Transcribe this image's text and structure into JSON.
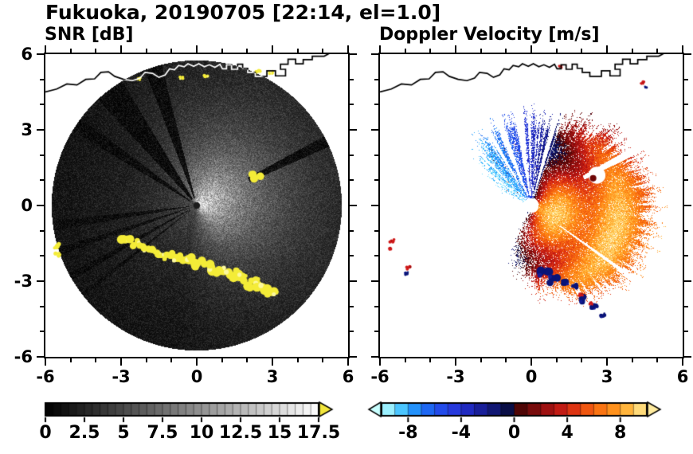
{
  "header": {
    "title": "Fukuoka, 20190705 [22:14, el=1.0]"
  },
  "panels": [
    {
      "title": "SNR [dB]"
    },
    {
      "title": "Doppler Velocity [m/s]"
    }
  ],
  "axis": {
    "range": [
      -6,
      6
    ],
    "tick_values": [
      -6,
      -3,
      0,
      3,
      6
    ],
    "tick_labels": [
      "-6",
      "-3",
      "0",
      "3",
      "6"
    ],
    "minor_step": 1
  },
  "colorbars": [
    {
      "id": "snr",
      "min": 0,
      "max": 17.5,
      "segments": 35,
      "values": [
        0,
        2.5,
        5,
        7.5,
        10,
        12.5,
        15,
        17.5
      ],
      "labels": [
        "0",
        "2.5",
        "5",
        "7.5",
        "10",
        "12.5",
        "15",
        "17.5"
      ],
      "over_arrow_color": "#f2e63c"
    },
    {
      "id": "vel",
      "min": -10,
      "max": 10,
      "segments": 20,
      "values": [
        -8,
        -4,
        0,
        4,
        8
      ],
      "labels": [
        "-8",
        "-4",
        "0",
        "4",
        "8"
      ]
    }
  ],
  "chart_data": {
    "type": "heatmap",
    "title": "Fukuoka, 20190705 [22:14, el=1.0]",
    "station": "Fukuoka",
    "date": "20190705",
    "time": "22:14",
    "elevation_deg": 1.0,
    "x_range_km": [
      -6,
      6
    ],
    "y_range_km": [
      -6,
      6
    ],
    "x_ticks": [
      -6,
      -3,
      0,
      3,
      6
    ],
    "y_ticks": [
      -6,
      -3,
      0,
      3,
      6
    ],
    "panels": [
      {
        "title": "SNR [dB]",
        "units": "dB",
        "colorbar_min": 0,
        "colorbar_max": 17.5,
        "colorbar_ticks": [
          0,
          2.5,
          5,
          7.5,
          10,
          12.5,
          15,
          17.5
        ],
        "colormap": "black-to-white grayscale, yellow above 17.5",
        "description": "PPI radar scan disk of radius ~5.75 km; SNR decays with range, brighter to the E/NE, dark beam-blockage wedges toward NW and WSW, yellow ground-clutter arc along the southern coastline, white coastline trace across the top of the disk"
      },
      {
        "title": "Doppler Velocity [m/s]",
        "units": "m/s",
        "colorbar_min": -10,
        "colorbar_max": 10,
        "colorbar_ticks": [
          -8,
          -4,
          0,
          4,
          8
        ],
        "colormap": "cyan-blue-navy for negative, dark red-red-orange-yellow for positive",
        "description": "Blue (negative, toward radar) echoes in a N-NW sector with white blocked-beam gaps; orange/red (positive) echoes over a broad E-through-S sector with radial banding; navy aliasing patches on the southern echo edge; black coastline at top"
      }
    ]
  },
  "render": {
    "radius": 5.75,
    "snr": {
      "amp": 15,
      "falloff": 2.4,
      "floor": 0.8,
      "az_bright_deg": 20,
      "az_width": 0.75,
      "az_floor": 0.28,
      "max": 17.5
    },
    "snr_wedges": [
      [
        104,
        111,
        0.3,
        0.05
      ],
      [
        121,
        133,
        0.3,
        0.04
      ],
      [
        143,
        149,
        0.3,
        0.06
      ],
      [
        24,
        28.5,
        2.3,
        0.06
      ],
      [
        186,
        190,
        0.3,
        0.12
      ],
      [
        197,
        200,
        0.3,
        0.12
      ],
      [
        208,
        211,
        0.3,
        0.12
      ],
      [
        217,
        219,
        0.3,
        0.15
      ]
    ],
    "clutter": [
      [
        -2.78,
        -1.32,
        0.26
      ],
      [
        -2.35,
        -1.5,
        0.2
      ],
      [
        -1.95,
        -1.72,
        0.22
      ],
      [
        -1.55,
        -1.92,
        0.18
      ],
      [
        -1.15,
        -2.0,
        0.2
      ],
      [
        -0.72,
        -2.1,
        0.24
      ],
      [
        -0.3,
        -2.2,
        0.27
      ],
      [
        0.12,
        -2.32,
        0.26
      ],
      [
        0.55,
        -2.45,
        0.28
      ],
      [
        0.98,
        -2.6,
        0.25
      ],
      [
        1.42,
        -2.72,
        0.28
      ],
      [
        1.85,
        -2.88,
        0.24
      ],
      [
        2.25,
        -3.08,
        0.28
      ],
      [
        2.65,
        -3.3,
        0.3
      ],
      [
        3.0,
        -3.45,
        0.23
      ],
      [
        -5.58,
        -1.6,
        0.14
      ],
      [
        -5.52,
        -1.95,
        0.12
      ],
      [
        2.35,
        1.15,
        0.24
      ],
      [
        0.35,
        5.15,
        0.1
      ],
      [
        -0.6,
        5.05,
        0.09
      ],
      [
        2.45,
        5.3,
        0.11
      ],
      [
        2.95,
        5.28,
        0.09
      ],
      [
        -2.3,
        5.02,
        0.08
      ]
    ],
    "coastline": [
      [
        -6,
        4.5
      ],
      [
        -5.55,
        4.62
      ],
      [
        -5.15,
        4.82
      ],
      [
        -4.75,
        4.78
      ],
      [
        -4.4,
        5.0
      ],
      [
        -4.05,
        5.02
      ],
      [
        -3.8,
        5.28
      ],
      [
        -3.5,
        5.3
      ],
      [
        -3.25,
        5.12
      ],
      [
        -2.9,
        5.0
      ],
      [
        -2.55,
        4.95
      ],
      [
        -2.25,
        5.05
      ],
      [
        -2.05,
        5.28
      ],
      [
        -1.75,
        5.24
      ],
      [
        -1.5,
        5.08
      ],
      [
        -1.25,
        5.18
      ],
      [
        -1.08,
        5.42
      ],
      [
        -0.88,
        5.38
      ],
      [
        -0.72,
        5.55
      ],
      [
        -0.5,
        5.5
      ],
      [
        -0.35,
        5.62
      ],
      [
        -0.12,
        5.52
      ],
      [
        0.08,
        5.62
      ],
      [
        0.3,
        5.5
      ],
      [
        0.5,
        5.58
      ],
      [
        0.72,
        5.48
      ],
      [
        0.92,
        5.6
      ],
      [
        1.02,
        5.42
      ],
      [
        1.18,
        5.42
      ],
      [
        1.18,
        5.58
      ],
      [
        1.38,
        5.58
      ],
      [
        1.38,
        5.4
      ],
      [
        1.62,
        5.4
      ],
      [
        1.62,
        5.6
      ],
      [
        1.82,
        5.6
      ],
      [
        1.82,
        5.44
      ],
      [
        2.02,
        5.44
      ],
      [
        2.02,
        5.28
      ],
      [
        2.32,
        5.28
      ],
      [
        2.32,
        5.12
      ],
      [
        2.78,
        5.12
      ],
      [
        2.78,
        5.34
      ],
      [
        3.12,
        5.34
      ],
      [
        3.12,
        5.14
      ],
      [
        3.52,
        5.14
      ],
      [
        3.52,
        5.4
      ],
      [
        3.32,
        5.4
      ],
      [
        3.32,
        5.6
      ],
      [
        3.62,
        5.6
      ],
      [
        3.62,
        5.8
      ],
      [
        3.92,
        5.8
      ],
      [
        3.92,
        5.62
      ],
      [
        4.22,
        5.62
      ],
      [
        4.22,
        5.78
      ],
      [
        4.58,
        5.78
      ],
      [
        4.58,
        5.92
      ],
      [
        5.05,
        5.92
      ],
      [
        5.3,
        6.05
      ]
    ],
    "rmax": [
      [
        -180,
        0
      ],
      [
        -130,
        0
      ],
      [
        -112,
        1.7
      ],
      [
        -98,
        2.7
      ],
      [
        -85,
        3.15
      ],
      [
        -65,
        3.7
      ],
      [
        -45,
        4.35
      ],
      [
        -25,
        4.65
      ],
      [
        -5,
        4.7
      ],
      [
        10,
        4.5
      ],
      [
        25,
        4.3
      ],
      [
        40,
        4.05
      ],
      [
        55,
        3.7
      ],
      [
        70,
        3.45
      ],
      [
        85,
        3.35
      ],
      [
        100,
        3.3
      ],
      [
        115,
        3.2
      ],
      [
        130,
        2.9
      ],
      [
        140,
        2.5
      ],
      [
        150,
        1.5
      ],
      [
        160,
        0.6
      ],
      [
        168,
        0
      ],
      [
        180,
        0
      ]
    ],
    "basep": [
      [
        -180,
        0
      ],
      [
        -122,
        0
      ],
      [
        -108,
        0.45
      ],
      [
        -92,
        0.8
      ],
      [
        -70,
        0.95
      ],
      [
        -30,
        0.97
      ],
      [
        30,
        0.97
      ],
      [
        60,
        0.95
      ],
      [
        78,
        0.88
      ],
      [
        95,
        0.82
      ],
      [
        120,
        0.82
      ],
      [
        138,
        0.7
      ],
      [
        150,
        0.4
      ],
      [
        162,
        0
      ],
      [
        180,
        0
      ]
    ],
    "gaps": [
      [
        96,
        100,
        0.4
      ],
      [
        109,
        113,
        0.5
      ],
      [
        118.5,
        121.5,
        1.0
      ],
      [
        72.5,
        76,
        0.4
      ],
      [
        26,
        30,
        2.35
      ],
      [
        -36.5,
        -34.7,
        1.4
      ],
      [
        133.5,
        135.5,
        1.3
      ]
    ],
    "vel": {
      "amp": 7.8,
      "dir_deg": -20,
      "band_amp": 1.4,
      "band_freq": 2.6,
      "noise": 2.2,
      "blue_bias": -1.2
    },
    "vel_colormap": [
      [
        -10,
        "#c8ffff"
      ],
      [
        -9,
        "#6ee0ff"
      ],
      [
        -8,
        "#28aaff"
      ],
      [
        -7,
        "#1e78f5"
      ],
      [
        -6,
        "#1e55ee"
      ],
      [
        -5,
        "#2841e6"
      ],
      [
        -4,
        "#2330d2"
      ],
      [
        -3,
        "#1c23ad"
      ],
      [
        -2,
        "#151b85"
      ],
      [
        -1,
        "#0d1260"
      ],
      [
        -0.3,
        "#070c3c"
      ],
      [
        0.3,
        "#460505"
      ],
      [
        1,
        "#640808"
      ],
      [
        2,
        "#8c0f0f"
      ],
      [
        3,
        "#b01313"
      ],
      [
        4,
        "#d22214"
      ],
      [
        5,
        "#e84610"
      ],
      [
        6,
        "#f5660f"
      ],
      [
        7,
        "#ff8214"
      ],
      [
        8,
        "#ffa023"
      ],
      [
        9,
        "#ffc855"
      ],
      [
        10,
        "#ffeb9e"
      ]
    ],
    "navy_blobs": [
      [
        0.5,
        -2.72,
        0.26
      ],
      [
        0.92,
        -2.95,
        0.22
      ],
      [
        1.3,
        -3.05,
        0.17
      ],
      [
        1.72,
        -3.2,
        0.13
      ],
      [
        2.1,
        -3.72,
        0.19
      ],
      [
        2.5,
        -4.02,
        0.15
      ],
      [
        2.85,
        -4.35,
        0.12
      ],
      [
        -4.95,
        -2.7,
        0.09
      ],
      [
        4.55,
        4.68,
        0.06
      ]
    ],
    "red_blobs": [
      [
        1.95,
        -3.55,
        0.09
      ],
      [
        2.35,
        -3.88,
        0.08
      ],
      [
        -5.52,
        -1.4,
        0.1
      ],
      [
        -5.55,
        -1.72,
        0.09
      ],
      [
        -4.88,
        -2.48,
        0.1
      ],
      [
        1.15,
        5.5,
        0.07
      ],
      [
        4.4,
        4.88,
        0.09
      ]
    ],
    "white_halo": [
      2.6,
      1.2,
      0.34
    ],
    "darkred_dot": [
      2.45,
      1.08,
      0.13
    ]
  }
}
